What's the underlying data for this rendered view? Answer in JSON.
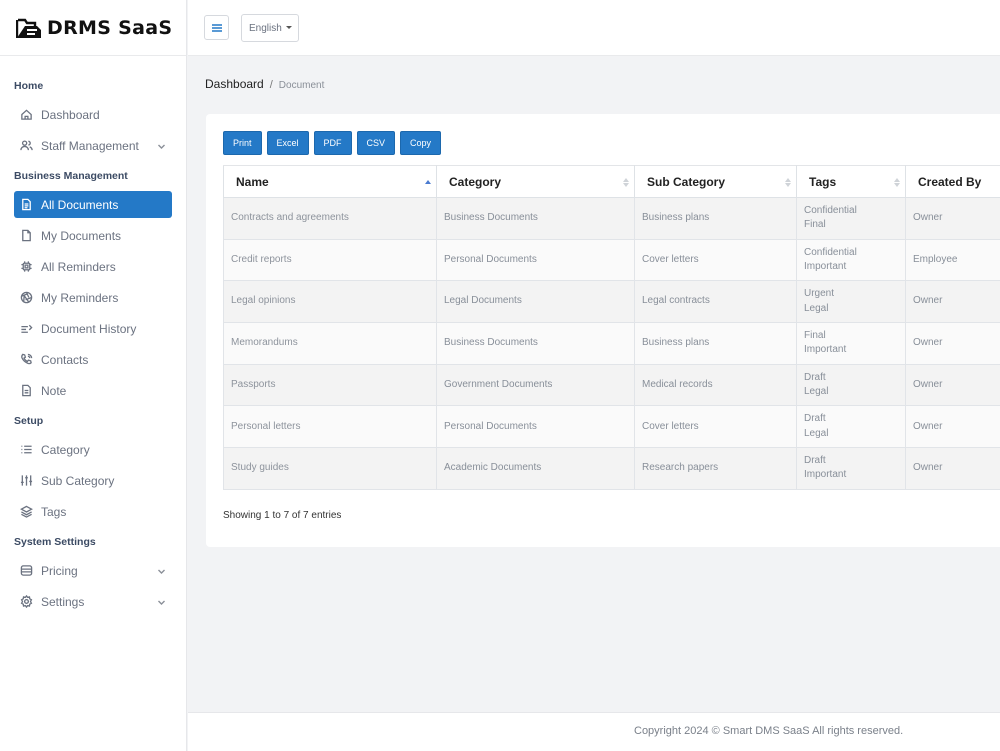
{
  "brand": {
    "name": "DRMS SaaS",
    "icon": "folder-doc-icon"
  },
  "sidebar": {
    "sections": [
      {
        "title": "Home",
        "items": [
          {
            "label": "Dashboard",
            "icon": "home-icon"
          },
          {
            "label": "Staff Management",
            "icon": "users-icon",
            "expandable": true
          }
        ]
      },
      {
        "title": "Business Management",
        "items": [
          {
            "label": "All Documents",
            "icon": "document-icon",
            "active": true
          },
          {
            "label": "My Documents",
            "icon": "file-icon"
          },
          {
            "label": "All Reminders",
            "icon": "cpu-icon"
          },
          {
            "label": "My Reminders",
            "icon": "aperture-icon"
          },
          {
            "label": "Document History",
            "icon": "history-icon"
          },
          {
            "label": "Contacts",
            "icon": "phone-icon"
          },
          {
            "label": "Note",
            "icon": "note-icon"
          }
        ]
      },
      {
        "title": "Setup",
        "items": [
          {
            "label": "Category",
            "icon": "list-icon"
          },
          {
            "label": "Sub Category",
            "icon": "sliders-icon"
          },
          {
            "label": "Tags",
            "icon": "layers-icon"
          }
        ]
      },
      {
        "title": "System Settings",
        "items": [
          {
            "label": "Pricing",
            "icon": "database-icon",
            "expandable": true
          },
          {
            "label": "Settings",
            "icon": "gear-icon",
            "expandable": true
          }
        ]
      }
    ]
  },
  "topbar": {
    "language": "English"
  },
  "breadcrumb": {
    "home": "Dashboard",
    "separator": "/",
    "current": "Document"
  },
  "toolbar": {
    "buttons": [
      "Print",
      "Excel",
      "PDF",
      "CSV",
      "Copy"
    ]
  },
  "table": {
    "headers": [
      "Name",
      "Category",
      "Sub Category",
      "Tags",
      "Created By"
    ],
    "rows": [
      {
        "name": "Contracts and agreements",
        "category": "Business Documents",
        "sub_category": "Business plans",
        "tags": [
          "Confidential",
          "Final"
        ],
        "created_by": "Owner"
      },
      {
        "name": "Credit reports",
        "category": "Personal Documents",
        "sub_category": "Cover letters",
        "tags": [
          "Confidential",
          "Important"
        ],
        "created_by": "Employee"
      },
      {
        "name": "Legal opinions",
        "category": "Legal Documents",
        "sub_category": "Legal contracts",
        "tags": [
          "Urgent",
          "Legal"
        ],
        "created_by": "Owner"
      },
      {
        "name": "Memorandums",
        "category": "Business Documents",
        "sub_category": "Business plans",
        "tags": [
          "Final",
          "Important"
        ],
        "created_by": "Owner"
      },
      {
        "name": "Passports",
        "category": "Government Documents",
        "sub_category": "Medical records",
        "tags": [
          "Draft",
          "Legal"
        ],
        "created_by": "Owner"
      },
      {
        "name": "Personal letters",
        "category": "Personal Documents",
        "sub_category": "Cover letters",
        "tags": [
          "Draft",
          "Legal"
        ],
        "created_by": "Owner"
      },
      {
        "name": "Study guides",
        "category": "Academic Documents",
        "sub_category": "Research papers",
        "tags": [
          "Draft",
          "Important"
        ],
        "created_by": "Owner"
      }
    ],
    "info": "Showing 1 to 7 of 7 entries"
  },
  "footer": {
    "copyright": "Copyright 2024 © Smart DMS SaaS All rights reserved."
  },
  "colors": {
    "accent": "#2479c7",
    "background": "#f2f3f5"
  }
}
